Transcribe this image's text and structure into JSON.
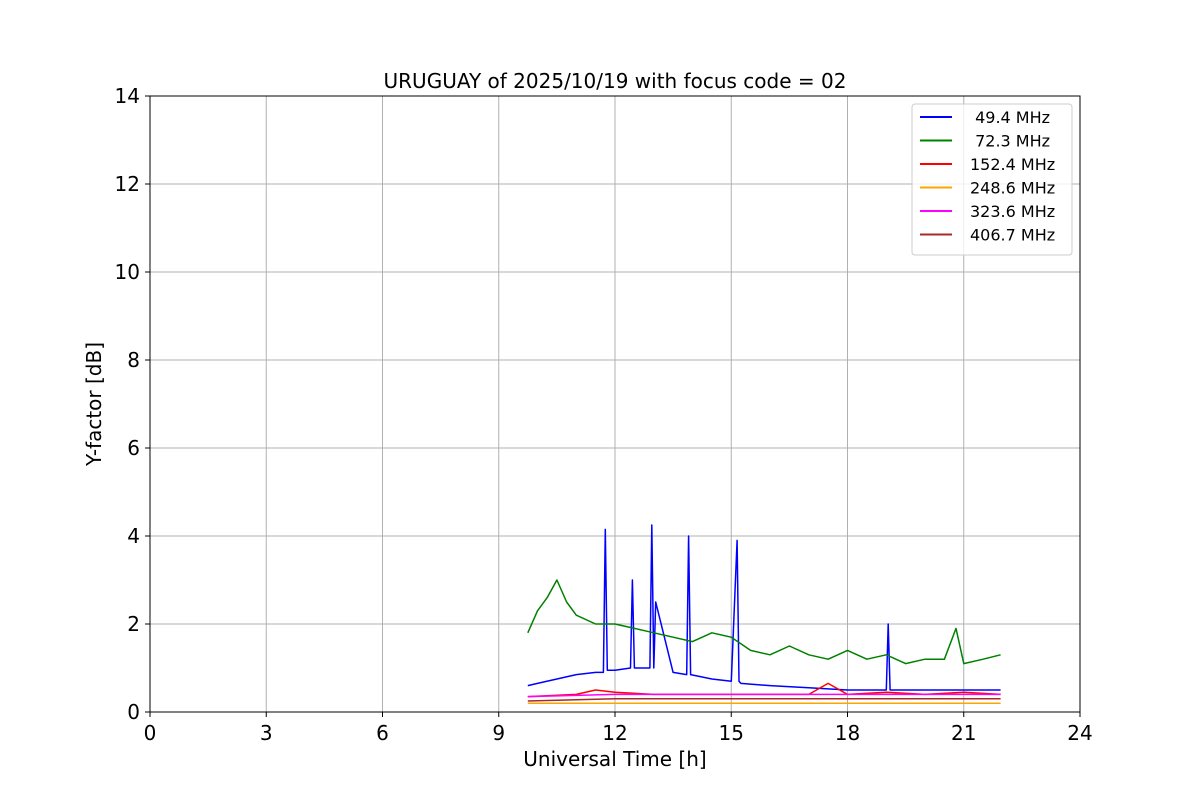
{
  "chart_data": {
    "type": "line",
    "title": "URUGUAY of 2025/10/19 with focus code = 02",
    "xlabel": "Universal Time [h]",
    "ylabel": "Y-factor [dB]",
    "xlim": [
      0,
      24
    ],
    "ylim": [
      0,
      14
    ],
    "xticks": [
      0,
      3,
      6,
      9,
      12,
      15,
      18,
      21,
      24
    ],
    "yticks": [
      0,
      2,
      4,
      6,
      8,
      10,
      12,
      14
    ],
    "grid": true,
    "legend_position": "top-right",
    "series": [
      {
        "name": " 49.4 MHz",
        "color": "#0000ff",
        "x": [
          9.75,
          10.0,
          10.5,
          11.0,
          11.5,
          11.7,
          11.75,
          11.8,
          12.0,
          12.4,
          12.45,
          12.5,
          12.9,
          12.95,
          13.0,
          13.05,
          13.5,
          13.85,
          13.9,
          13.95,
          14.5,
          15.0,
          15.15,
          15.2,
          15.25,
          16.0,
          17.0,
          18.0,
          19.0,
          19.05,
          19.1,
          20.0,
          21.0,
          21.95
        ],
        "y": [
          0.6,
          0.65,
          0.75,
          0.85,
          0.9,
          0.9,
          4.15,
          0.95,
          0.95,
          1.0,
          3.0,
          1.0,
          1.0,
          4.25,
          1.0,
          2.5,
          0.9,
          0.85,
          4.0,
          0.85,
          0.75,
          0.7,
          3.9,
          0.7,
          0.65,
          0.6,
          0.55,
          0.5,
          0.5,
          2.0,
          0.5,
          0.5,
          0.5,
          0.5
        ]
      },
      {
        "name": " 72.3 MHz",
        "color": "#008000",
        "x": [
          9.75,
          10.0,
          10.25,
          10.5,
          10.75,
          11.0,
          11.5,
          12.0,
          12.5,
          13.0,
          13.5,
          14.0,
          14.5,
          15.0,
          15.5,
          16.0,
          16.5,
          17.0,
          17.5,
          18.0,
          18.5,
          19.0,
          19.5,
          20.0,
          20.5,
          20.8,
          21.0,
          21.5,
          21.95
        ],
        "y": [
          1.8,
          2.3,
          2.6,
          3.0,
          2.5,
          2.2,
          2.0,
          2.0,
          1.9,
          1.8,
          1.7,
          1.6,
          1.8,
          1.7,
          1.4,
          1.3,
          1.5,
          1.3,
          1.2,
          1.4,
          1.2,
          1.3,
          1.1,
          1.2,
          1.2,
          1.9,
          1.1,
          1.2,
          1.3
        ]
      },
      {
        "name": "152.4 MHz",
        "color": "#ff0000",
        "x": [
          9.75,
          11.0,
          11.5,
          12.0,
          13.0,
          14.0,
          15.0,
          16.0,
          17.0,
          17.5,
          18.0,
          19.0,
          20.0,
          21.0,
          21.95
        ],
        "y": [
          0.35,
          0.4,
          0.5,
          0.45,
          0.4,
          0.4,
          0.4,
          0.4,
          0.4,
          0.65,
          0.4,
          0.45,
          0.4,
          0.45,
          0.4
        ]
      },
      {
        "name": "248.6 MHz",
        "color": "#ffa500",
        "x": [
          9.75,
          12.0,
          15.0,
          18.0,
          21.0,
          21.95
        ],
        "y": [
          0.2,
          0.2,
          0.2,
          0.2,
          0.2,
          0.2
        ]
      },
      {
        "name": "323.6 MHz",
        "color": "#ff00ff",
        "x": [
          9.75,
          12.0,
          15.0,
          18.0,
          21.0,
          21.95
        ],
        "y": [
          0.35,
          0.4,
          0.4,
          0.4,
          0.4,
          0.4
        ]
      },
      {
        "name": "406.7 MHz",
        "color": "#a52a2a",
        "x": [
          9.75,
          12.0,
          15.0,
          18.0,
          21.0,
          21.95
        ],
        "y": [
          0.25,
          0.3,
          0.3,
          0.3,
          0.3,
          0.3
        ]
      }
    ]
  }
}
